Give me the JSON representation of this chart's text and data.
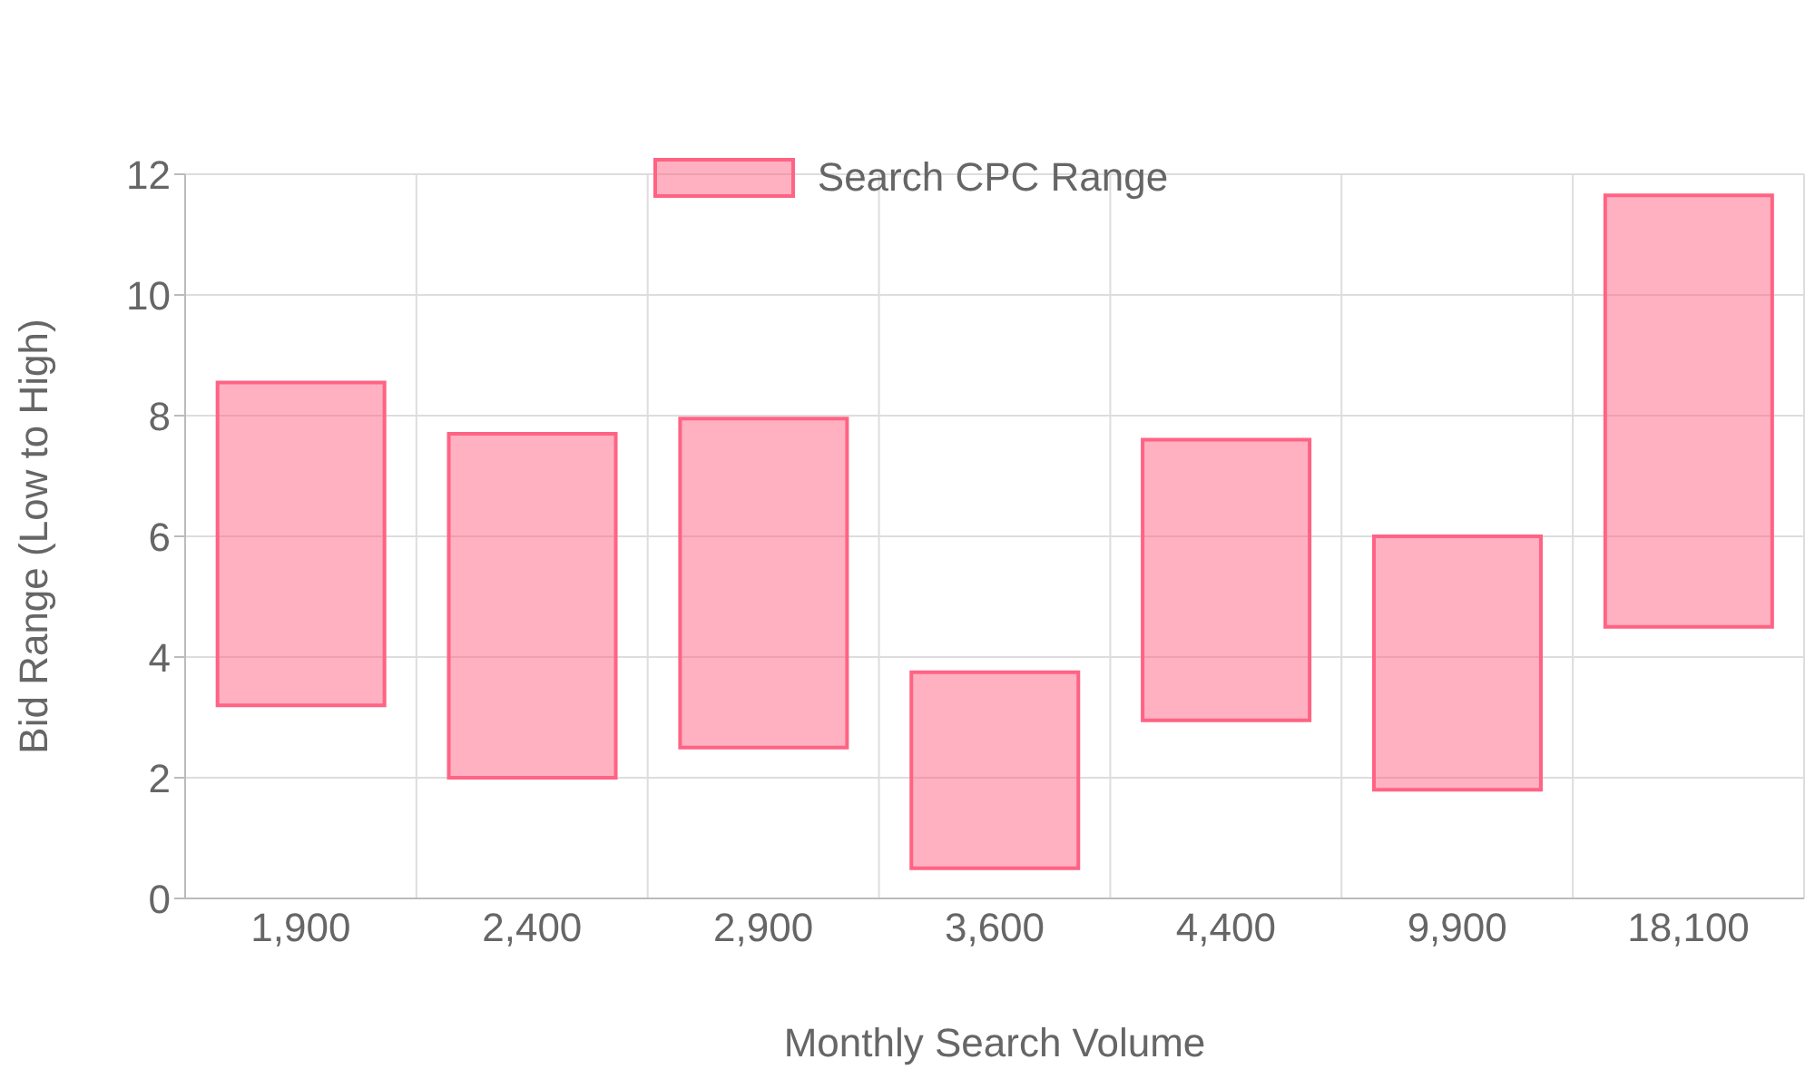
{
  "chart_data": {
    "type": "bar",
    "xlabel": "Monthly Search Volume",
    "ylabel": "Bid Range (Low to High)",
    "categories": [
      "1,900",
      "2,400",
      "2,900",
      "3,600",
      "4,400",
      "9,900",
      "18,100"
    ],
    "series": [
      {
        "name": "Search CPC Range",
        "color": "#ff6384",
        "values": [
          5.35,
          5.7,
          5.45,
          3.25,
          4.65,
          4.2,
          7.15
        ],
        "base": [
          3.2,
          2.0,
          2.5,
          0.5,
          2.95,
          1.8,
          4.5
        ]
      }
    ],
    "ylim": [
      0,
      12
    ],
    "yticks": [
      0,
      2,
      4,
      6,
      8,
      10,
      12
    ],
    "grid": true,
    "legend": "top"
  }
}
